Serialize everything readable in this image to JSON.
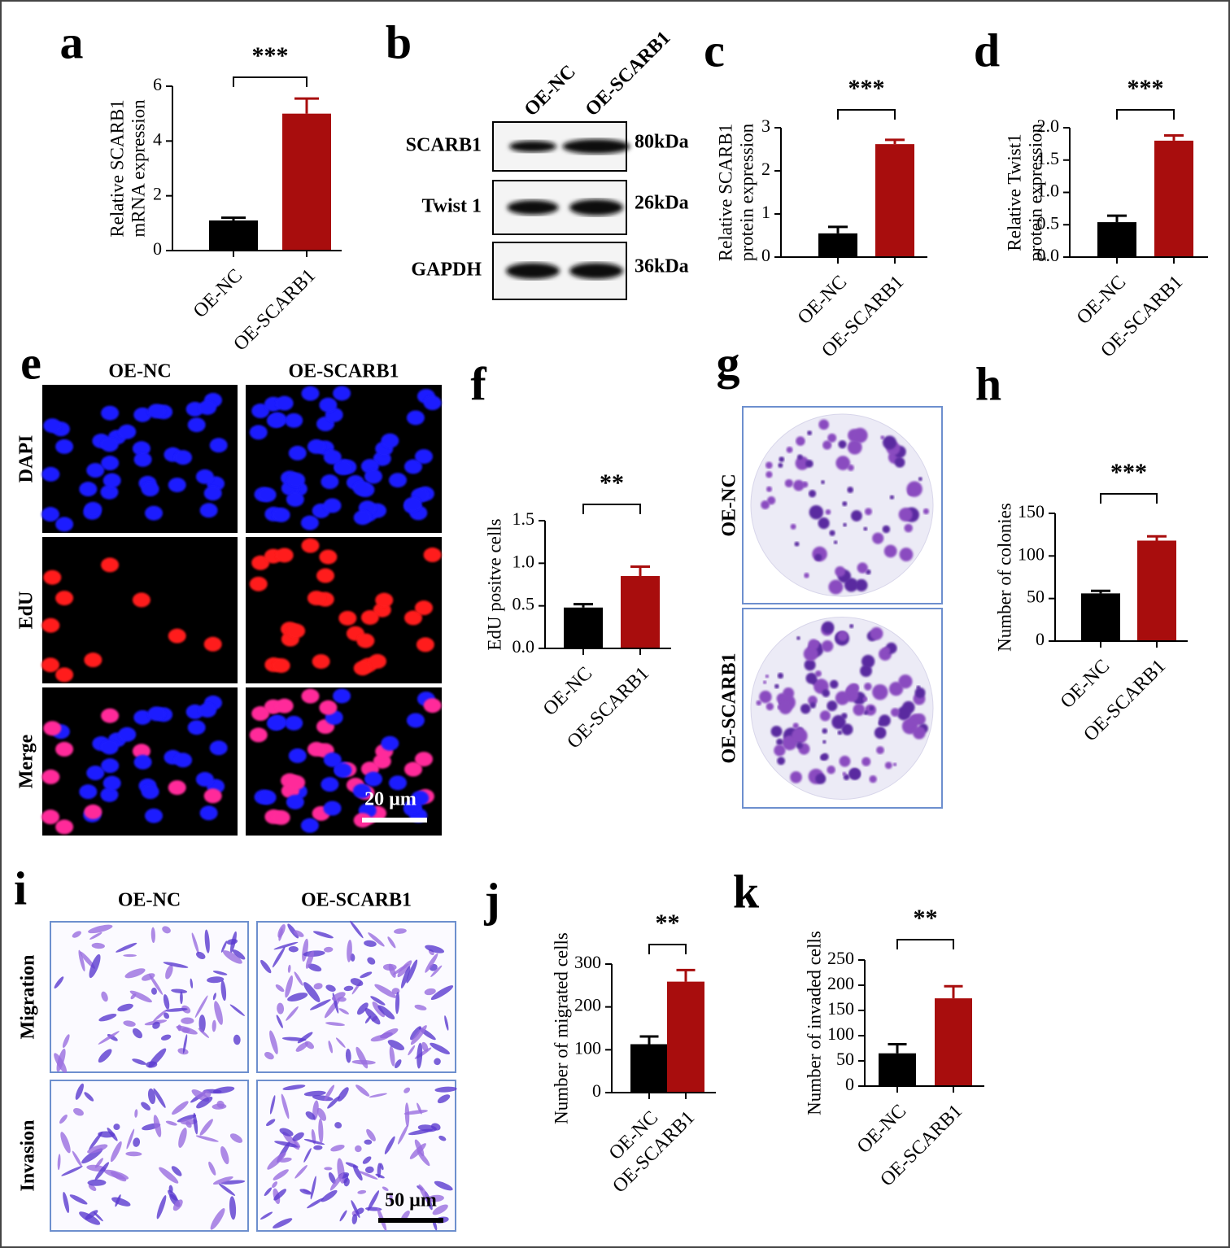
{
  "chart_data": [
    {
      "type": "bar",
      "label": "a",
      "ylabel": [
        "Relative SCARB1",
        "mRNA expression"
      ],
      "categories": [
        "OE-NC",
        "OE-SCARB1"
      ],
      "values": [
        1.1,
        5.0
      ],
      "errors": [
        0.1,
        0.55
      ],
      "colors": [
        "#000000",
        "#a80d0d"
      ],
      "ylim": [
        0,
        6
      ],
      "yticks": [
        0,
        2,
        4,
        6
      ],
      "significance": "***"
    },
    {
      "type": "bar",
      "label": "c",
      "ylabel": [
        "Relative SCARB1",
        "protein expression"
      ],
      "categories": [
        "OE-NC",
        "OE-SCARB1"
      ],
      "values": [
        0.55,
        2.62
      ],
      "errors": [
        0.15,
        0.1
      ],
      "colors": [
        "#000000",
        "#a80d0d"
      ],
      "ylim": [
        0,
        3
      ],
      "yticks": [
        0,
        1,
        2,
        3
      ],
      "significance": "***"
    },
    {
      "type": "bar",
      "label": "d",
      "ylabel": [
        "Relative Twist1",
        "protein expression"
      ],
      "categories": [
        "OE-NC",
        "OE-SCARB1"
      ],
      "values": [
        0.54,
        1.8
      ],
      "errors": [
        0.1,
        0.08
      ],
      "colors": [
        "#000000",
        "#a80d0d"
      ],
      "ylim": [
        0,
        2
      ],
      "yticks": [
        {
          "value": 0,
          "label": "0.0"
        },
        0.5,
        {
          "value": 1,
          "label": "1.0"
        },
        1.5,
        {
          "value": 2,
          "label": "2.0"
        }
      ],
      "significance": "***"
    },
    {
      "type": "bar",
      "label": "f",
      "ylabel": [
        "EdU positve cells"
      ],
      "categories": [
        "OE-NC",
        "OE-SCARB1"
      ],
      "values": [
        0.48,
        0.85
      ],
      "errors": [
        0.04,
        0.11
      ],
      "colors": [
        "#000000",
        "#a80d0d"
      ],
      "ylim": [
        0,
        1.5
      ],
      "yticks": [
        {
          "value": 0,
          "label": "0.0"
        },
        0.5,
        {
          "value": 1,
          "label": "1.0"
        },
        1.5
      ],
      "significance": "**"
    },
    {
      "type": "bar",
      "label": "h",
      "ylabel": [
        "Number of colonies"
      ],
      "categories": [
        "OE-NC",
        "OE-SCARB1"
      ],
      "values": [
        56,
        118
      ],
      "errors": [
        3,
        5
      ],
      "colors": [
        "#000000",
        "#a80d0d"
      ],
      "ylim": [
        0,
        150
      ],
      "yticks": [
        0,
        50,
        100,
        150
      ],
      "significance": "***"
    },
    {
      "type": "bar",
      "label": "j",
      "ylabel": [
        "Number of migrated cells"
      ],
      "categories": [
        "OE-NC",
        "OE-SCARB1"
      ],
      "values": [
        113,
        259
      ],
      "errors": [
        18,
        27
      ],
      "colors": [
        "#000000",
        "#a80d0d"
      ],
      "ylim": [
        0,
        300
      ],
      "yticks": [
        0,
        100,
        200,
        300
      ],
      "significance": "**"
    },
    {
      "type": "bar",
      "label": "k",
      "ylabel": [
        "Number of invaded cells"
      ],
      "categories": [
        "OE-NC",
        "OE-SCARB1"
      ],
      "values": [
        65,
        174
      ],
      "errors": [
        18,
        24
      ],
      "colors": [
        "#000000",
        "#a80d0d"
      ],
      "ylim": [
        0,
        250
      ],
      "yticks": [
        0,
        50,
        100,
        150,
        200,
        250
      ],
      "significance": "**"
    }
  ],
  "blot": {
    "label": "b",
    "columns": [
      "OE-NC",
      "OE-SCARB1"
    ],
    "rows": [
      {
        "name": "SCARB1",
        "size": "80kDa"
      },
      {
        "name": "Twist 1",
        "size": "26kDa"
      },
      {
        "name": "GAPDH",
        "size": "36kDa"
      }
    ]
  },
  "fluorescence": {
    "label": "e",
    "columns": [
      "OE-NC",
      "OE-SCARB1"
    ],
    "rows": [
      "DAPI",
      "EdU",
      "Merge"
    ],
    "scale_bar": "20 µm"
  },
  "colony": {
    "label": "g",
    "rows": [
      "OE-NC",
      "OE-SCARB1"
    ]
  },
  "transwell": {
    "label": "i",
    "columns": [
      "OE-NC",
      "OE-SCARB1"
    ],
    "rows": [
      "Migration",
      "Invasion"
    ],
    "scale_bar": "50 µm"
  }
}
